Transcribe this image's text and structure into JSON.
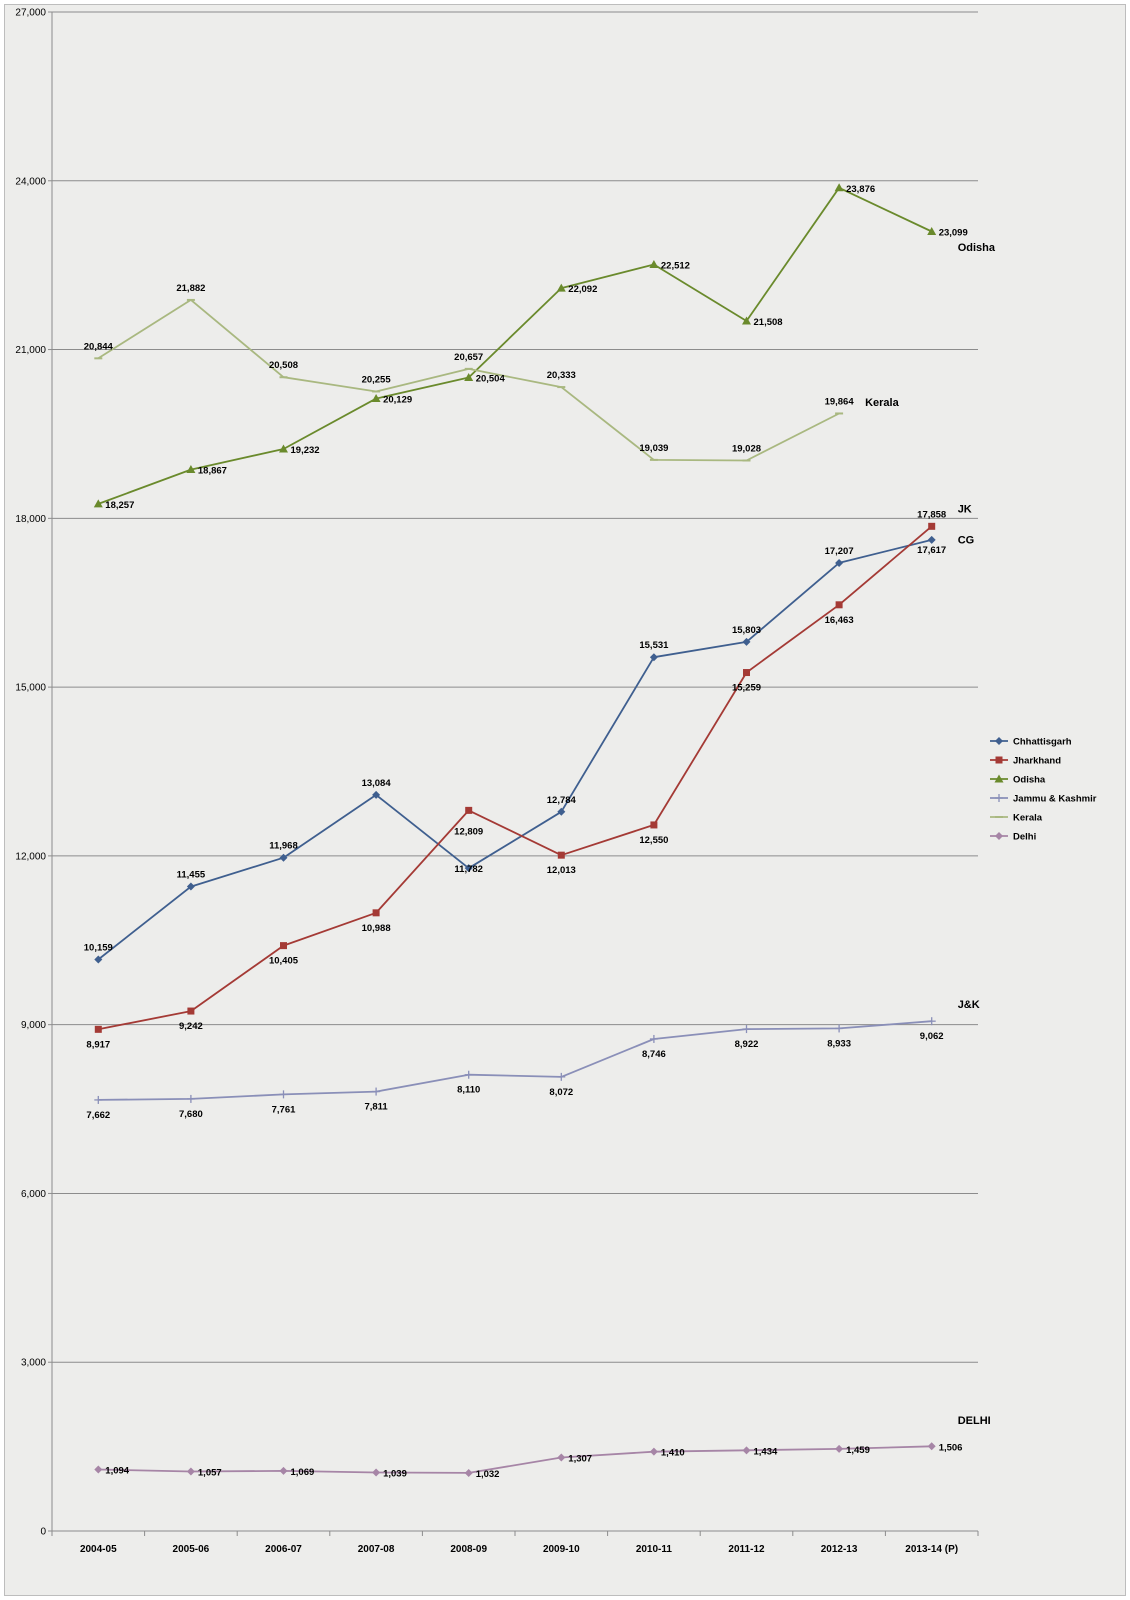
{
  "chart_data": {
    "type": "line",
    "categories": [
      "2004-05",
      "2005-06",
      "2006-07",
      "2007-08",
      "2008-09",
      "2009-10",
      "2010-11",
      "2011-12",
      "2012-13",
      "2013-14 (P)"
    ],
    "ylim": [
      0,
      27000
    ],
    "yticks": [
      0,
      3000,
      6000,
      9000,
      12000,
      15000,
      18000,
      21000,
      24000,
      27000
    ],
    "ytick_labels": [
      "0",
      "3,000",
      "6,000",
      "9,000",
      "12,000",
      "15,000",
      "18,000",
      "21,000",
      "24,000",
      "27,000"
    ],
    "grid": true,
    "legend_position": "right",
    "series": [
      {
        "name": "Chhattisgarh",
        "color": "#3f5f8f",
        "marker": "diamond",
        "values": [
          10159,
          11455,
          11968,
          13084,
          11782,
          12784,
          15531,
          15803,
          17207,
          17617
        ],
        "labels": [
          "10,159",
          "11,455",
          "11,968",
          "13,084",
          "11,782",
          "12,784",
          "15,531",
          "15,803",
          "17,207",
          "17,617"
        ]
      },
      {
        "name": "Jharkhand",
        "color": "#a43a35",
        "marker": "square",
        "values": [
          8917,
          9242,
          10405,
          10988,
          12809,
          12013,
          12550,
          15259,
          16463,
          17858
        ],
        "labels": [
          "8,917",
          "9,242",
          "10,405",
          "10,988",
          "12,809",
          "12,013",
          "12,550",
          "15,259",
          "16,463",
          "17,858"
        ]
      },
      {
        "name": "Odisha",
        "color": "#6a8a2c",
        "marker": "triangle",
        "values": [
          18257,
          18867,
          19232,
          20129,
          20504,
          22092,
          22512,
          21508,
          23876,
          23099
        ],
        "labels": [
          "18,257",
          "18,867",
          "19,232",
          "20,129",
          "20,504",
          "22,092",
          "22,512",
          "21,508",
          "23,876",
          "23,099"
        ]
      },
      {
        "name": "Jammu & Kashmir",
        "color": "#8a8fb8",
        "marker": "plus",
        "values": [
          7662,
          7680,
          7761,
          7811,
          8110,
          8072,
          8746,
          8922,
          8933,
          9062
        ],
        "labels": [
          "7,662",
          "7,680",
          "7,761",
          "7,811",
          "8,110",
          "8,072",
          "8,746",
          "8,922",
          "8,933",
          "9,062"
        ]
      },
      {
        "name": "Kerala",
        "color": "#a9b880",
        "marker": "dash",
        "values": [
          20844,
          21882,
          20508,
          20255,
          20657,
          20333,
          19039,
          19028,
          19864,
          null
        ],
        "labels": [
          "20,844",
          "21,882",
          "20,508",
          "20,255",
          "20,657",
          "20,333",
          "19,039",
          "19,028",
          "19,864",
          ""
        ]
      },
      {
        "name": "Delhi",
        "color": "#a685a6",
        "marker": "diamond",
        "values": [
          1094,
          1057,
          1069,
          1039,
          1032,
          1307,
          1410,
          1434,
          1459,
          1506
        ],
        "labels": [
          "1,094",
          "1,057",
          "1,069",
          "1,039",
          "1,032",
          "1,307",
          "1,410",
          "1,434",
          "1,459",
          "1,506"
        ]
      }
    ],
    "annotations": [
      {
        "text": "Odisha",
        "x": "2013-14 (P)",
        "y": 22750
      },
      {
        "text": "Kerala",
        "x": "2012-13",
        "y": 20000
      },
      {
        "text": "JK",
        "x": "2013-14 (P)",
        "y": 18100
      },
      {
        "text": "CG",
        "x": "2013-14 (P)",
        "y": 17550
      },
      {
        "text": "J&K",
        "x": "2013-14 (P)",
        "y": 9300
      },
      {
        "text": "DELHI",
        "x": "2013-14 (P)",
        "y": 1900
      }
    ]
  }
}
